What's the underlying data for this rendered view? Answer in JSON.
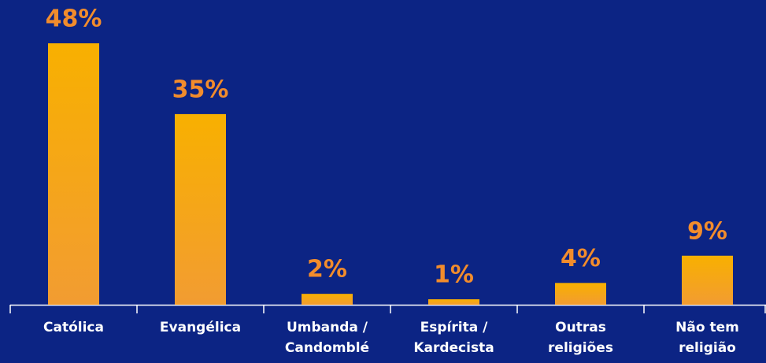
{
  "chart_data": {
    "type": "bar",
    "categories": [
      [
        "Católica"
      ],
      [
        "Evangélica"
      ],
      [
        "Umbanda /",
        "Candomblé"
      ],
      [
        "Espírita /",
        "Kardecista"
      ],
      [
        "Outras",
        "religiões"
      ],
      [
        "Não tem",
        "religião"
      ]
    ],
    "values": [
      48,
      35,
      2,
      1,
      4,
      9
    ],
    "value_labels": [
      "48%",
      "35%",
      "2%",
      "1%",
      "4%",
      "9%"
    ],
    "color": "#f7ac0a"
  }
}
